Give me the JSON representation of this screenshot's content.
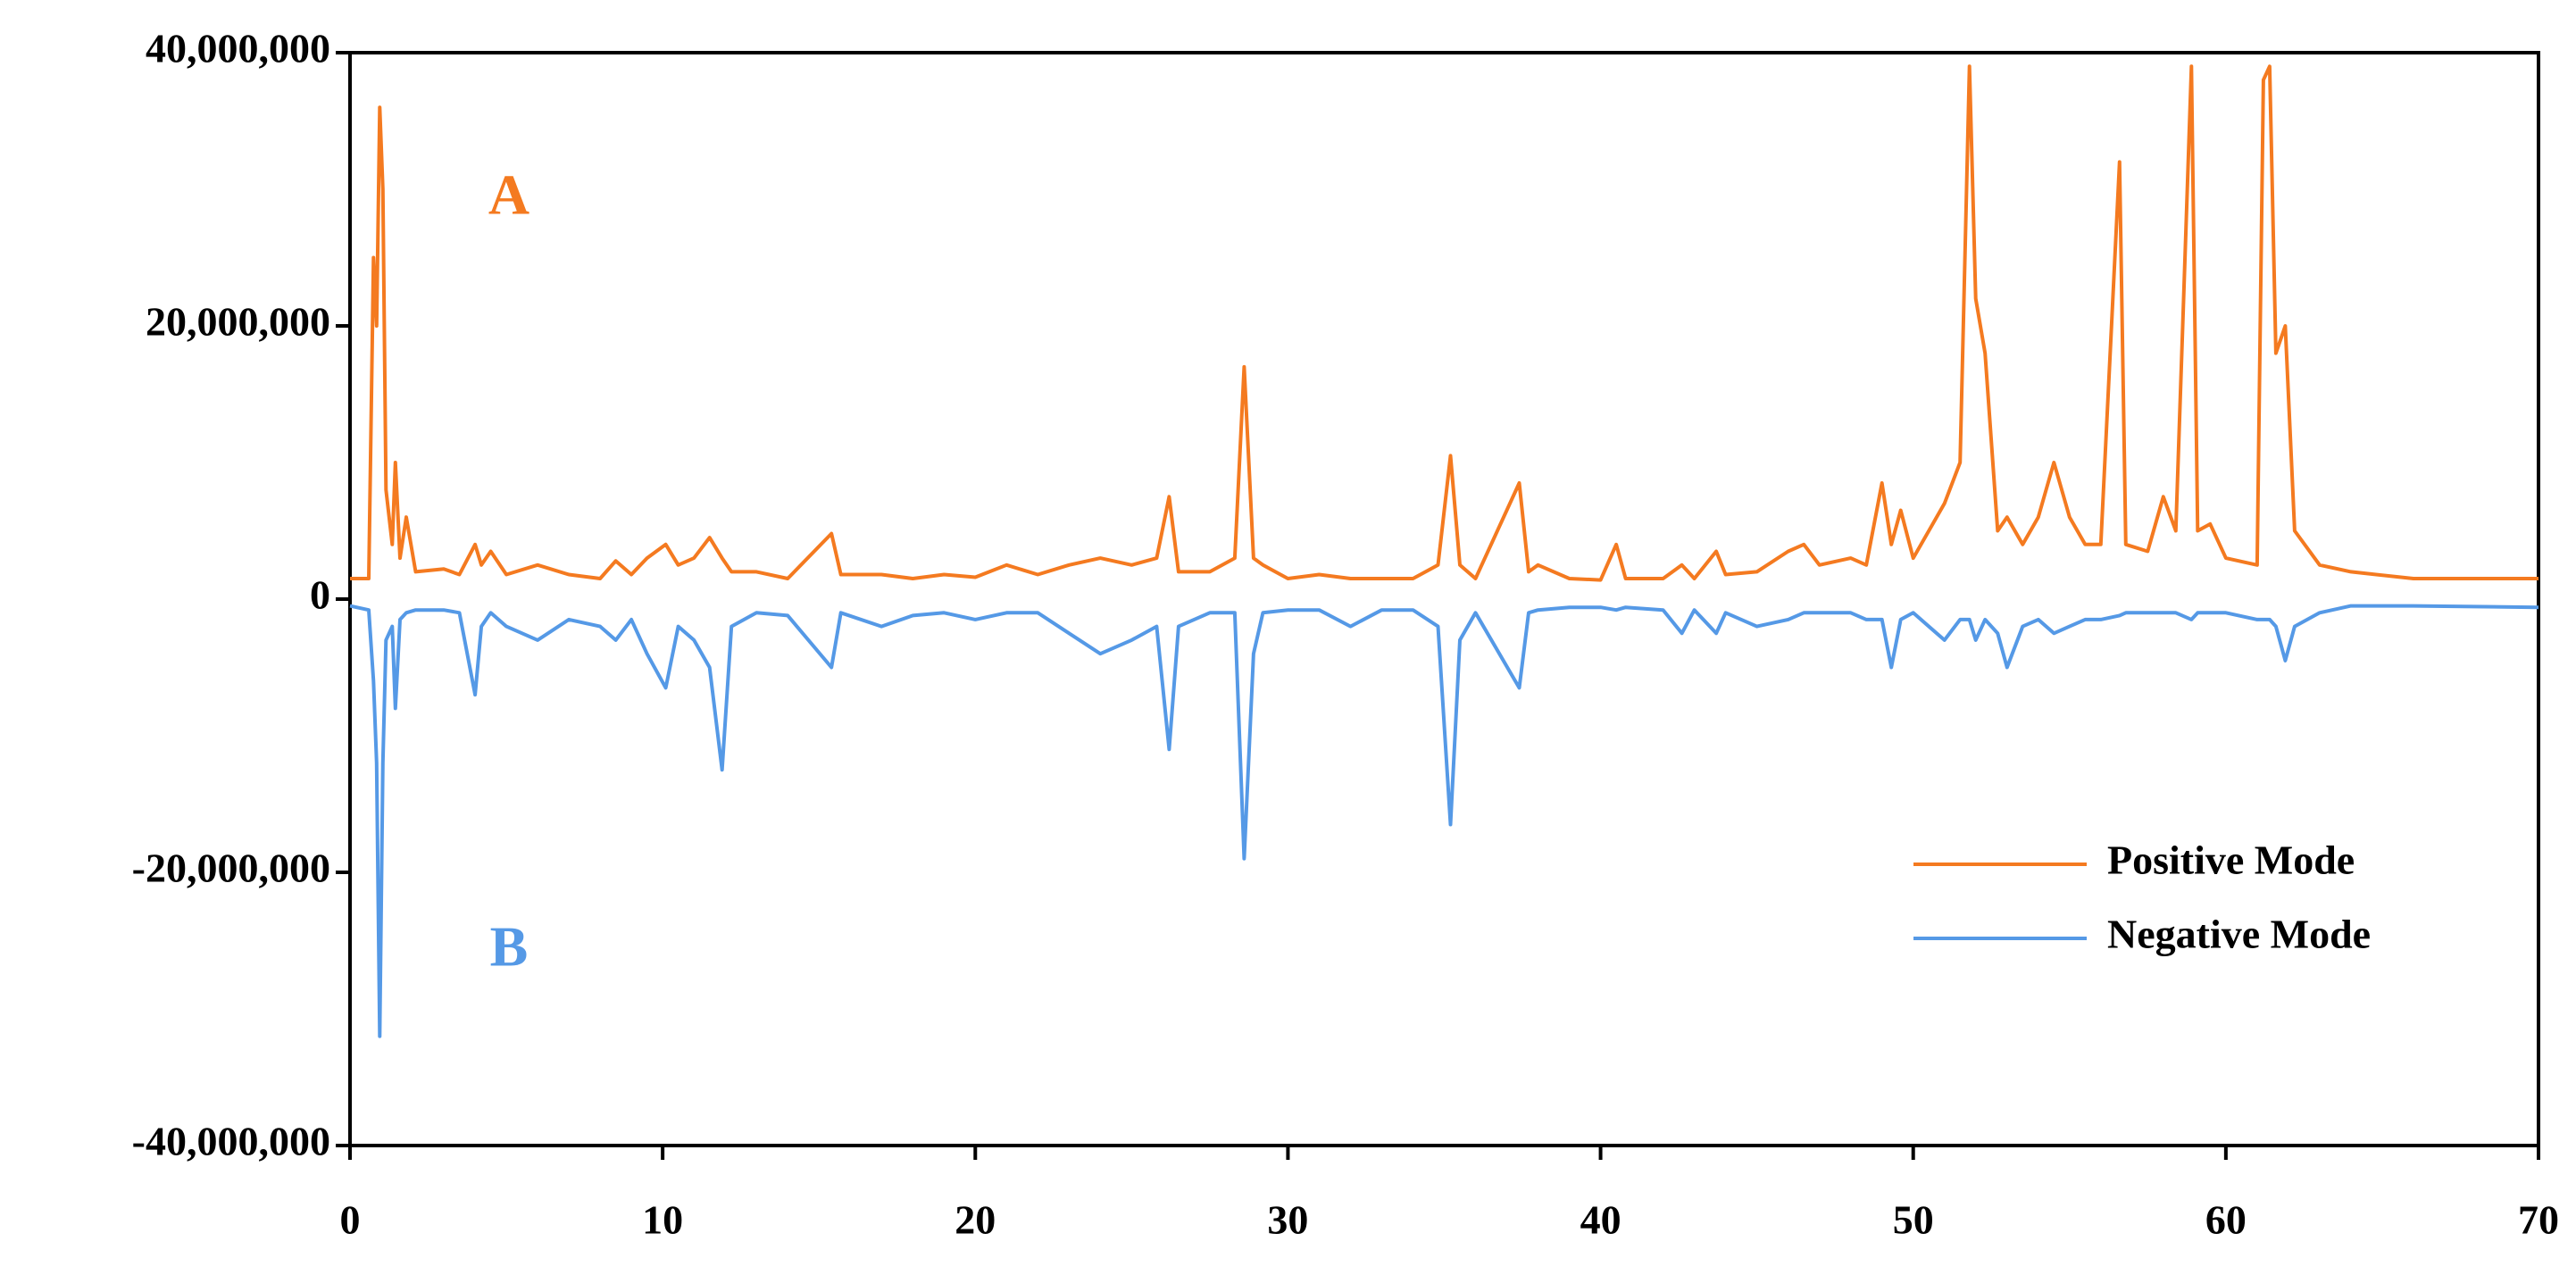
{
  "chart_data": {
    "type": "line",
    "x": [
      0,
      0.6,
      0.75,
      0.85,
      0.95,
      1.05,
      1.15,
      1.35,
      1.45,
      1.6,
      1.8,
      2.1,
      3,
      3.5,
      4.0,
      4.2,
      4.5,
      5,
      6,
      7,
      8,
      8.5,
      9,
      9.5,
      10.1,
      10.5,
      11,
      11.5,
      11.9,
      12.2,
      13,
      14,
      15.4,
      15.7,
      17,
      18,
      19,
      20,
      21,
      22,
      23,
      24,
      25,
      25.8,
      26.2,
      26.5,
      27.5,
      28.3,
      28.6,
      28.9,
      29.2,
      30,
      31,
      32,
      33,
      34,
      34.8,
      35.2,
      35.5,
      36,
      37.4,
      37.7,
      38,
      39,
      40,
      40.5,
      40.8,
      42,
      42.6,
      43,
      43.7,
      44,
      45,
      46,
      46.5,
      47,
      48,
      48.5,
      49,
      49.3,
      49.6,
      50,
      51,
      51.5,
      51.8,
      52,
      52.3,
      52.7,
      53,
      53.5,
      54,
      54.5,
      55,
      55.5,
      56,
      56.6,
      56.8,
      57.5,
      58,
      58.4,
      58.9,
      59.1,
      59.5,
      60,
      61,
      61.2,
      61.4,
      61.6,
      61.9,
      62.2,
      63,
      64,
      66,
      70
    ],
    "series": [
      {
        "name": "Positive Mode",
        "color": "#f47a20",
        "values": [
          1500000,
          1500000,
          25000000,
          20000000,
          36000000,
          30000000,
          8000000,
          4000000,
          10000000,
          3000000,
          6000000,
          2000000,
          2200000,
          1800000,
          4000000,
          2500000,
          3500000,
          1800000,
          2500000,
          1800000,
          1500000,
          2800000,
          1800000,
          3000000,
          4000000,
          2500000,
          3000000,
          4500000,
          3000000,
          2000000,
          2000000,
          1500000,
          4800000,
          1800000,
          1800000,
          1500000,
          1800000,
          1600000,
          2500000,
          1800000,
          2500000,
          3000000,
          2500000,
          3000000,
          7500000,
          2000000,
          2000000,
          3000000,
          17000000,
          3000000,
          2500000,
          1500000,
          1800000,
          1500000,
          1500000,
          1500000,
          2500000,
          10500000,
          2500000,
          1500000,
          8500000,
          2000000,
          2500000,
          1500000,
          1400000,
          4000000,
          1500000,
          1500000,
          2500000,
          1500000,
          3500000,
          1800000,
          2000000,
          3500000,
          4000000,
          2500000,
          3000000,
          2500000,
          8500000,
          4000000,
          6500000,
          3000000,
          7000000,
          10000000,
          39000000,
          22000000,
          18000000,
          5000000,
          6000000,
          4000000,
          6000000,
          10000000,
          6000000,
          4000000,
          4000000,
          32000000,
          4000000,
          3500000,
          7500000,
          5000000,
          39000000,
          5000000,
          5500000,
          3000000,
          2500000,
          38000000,
          39000000,
          18000000,
          20000000,
          5000000,
          2500000,
          2000000,
          1500000,
          1500000
        ]
      },
      {
        "name": "Negative Mode",
        "color": "#5599e6",
        "values": [
          -500000,
          -800000,
          -6000000,
          -12000000,
          -32000000,
          -12000000,
          -3000000,
          -2000000,
          -8000000,
          -1500000,
          -1000000,
          -800000,
          -800000,
          -1000000,
          -7000000,
          -2000000,
          -1000000,
          -2000000,
          -3000000,
          -1500000,
          -2000000,
          -3000000,
          -1500000,
          -4000000,
          -6500000,
          -2000000,
          -3000000,
          -5000000,
          -12500000,
          -2000000,
          -1000000,
          -1200000,
          -5000000,
          -1000000,
          -2000000,
          -1200000,
          -1000000,
          -1500000,
          -1000000,
          -1000000,
          -2500000,
          -4000000,
          -3000000,
          -2000000,
          -11000000,
          -2000000,
          -1000000,
          -1000000,
          -19000000,
          -4000000,
          -1000000,
          -800000,
          -800000,
          -2000000,
          -800000,
          -800000,
          -2000000,
          -16500000,
          -3000000,
          -1000000,
          -6500000,
          -1000000,
          -800000,
          -600000,
          -600000,
          -800000,
          -600000,
          -800000,
          -2500000,
          -800000,
          -2500000,
          -1000000,
          -2000000,
          -1500000,
          -1000000,
          -1000000,
          -1000000,
          -1500000,
          -1500000,
          -5000000,
          -1500000,
          -1000000,
          -3000000,
          -1500000,
          -1500000,
          -3000000,
          -1500000,
          -2500000,
          -5000000,
          -2000000,
          -1500000,
          -2500000,
          -2000000,
          -1500000,
          -1500000,
          -1200000,
          -1000000,
          -1000000,
          -1000000,
          -1000000,
          -1500000,
          -1000000,
          -1000000,
          -1000000,
          -1500000,
          -1500000,
          -1500000,
          -2000000,
          -4500000,
          -2000000,
          -1000000,
          -500000,
          -500000,
          -600000
        ]
      }
    ],
    "xlim": [
      0,
      70
    ],
    "xticks": [
      0,
      10,
      20,
      30,
      40,
      50,
      60,
      70
    ],
    "ylim": [
      -40000000,
      40000000
    ],
    "yticks": [
      {
        "value": -40000000,
        "label": "-40,000,000"
      },
      {
        "value": -20000000,
        "label": "-20,000,000"
      },
      {
        "value": 0,
        "label": "0"
      },
      {
        "value": 20000000,
        "label": "20,000,000"
      },
      {
        "value": 40000000,
        "label": "40,000,000"
      }
    ],
    "legend": "lower right",
    "annotations": [
      {
        "text": "A",
        "color": "#f47a20"
      },
      {
        "text": "B",
        "color": "#5599e6"
      }
    ]
  }
}
